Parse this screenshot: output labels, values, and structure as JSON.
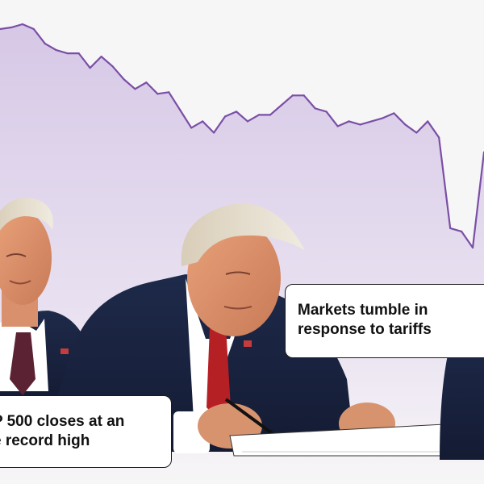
{
  "annotations": {
    "left_line1": "P 500 closes at an",
    "left_line2": "e record high",
    "right_line1": "Markets tumble in",
    "right_line2": "response to tariffs"
  },
  "chart_data": {
    "type": "area",
    "title": "",
    "xlabel": "",
    "ylabel": "",
    "x": [
      0,
      1,
      2,
      3,
      4,
      5,
      6,
      7,
      8,
      9,
      10,
      11,
      12,
      13,
      14,
      15,
      16,
      17,
      18,
      19,
      20,
      21,
      22,
      23,
      24,
      25,
      26,
      27,
      28,
      29,
      30,
      31,
      32,
      33,
      34,
      35,
      36,
      37,
      38,
      39,
      40,
      41,
      42,
      43
    ],
    "values": [
      0.97,
      0.98,
      1.0,
      0.97,
      0.88,
      0.84,
      0.82,
      0.82,
      0.73,
      0.8,
      0.74,
      0.66,
      0.6,
      0.64,
      0.57,
      0.58,
      0.47,
      0.36,
      0.4,
      0.33,
      0.43,
      0.46,
      0.4,
      0.44,
      0.44,
      0.5,
      0.56,
      0.56,
      0.48,
      0.46,
      0.37,
      0.4,
      0.38,
      0.4,
      0.42,
      0.45,
      0.38,
      0.33,
      0.4,
      0.3,
      -0.26,
      -0.28,
      -0.38,
      0.21
    ],
    "ylim": [
      -1,
      1
    ],
    "colors": {
      "line": "#7a4fa6",
      "fill_top": "#d3c4e3",
      "fill_bottom": "#f7f6f6"
    }
  }
}
